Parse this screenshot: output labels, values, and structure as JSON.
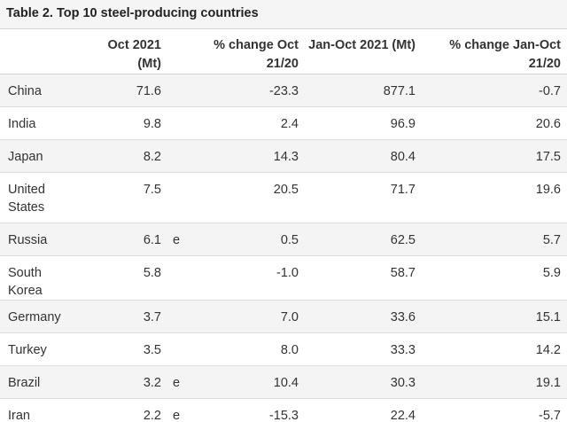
{
  "title": "Table 2. Top 10 steel-producing countries",
  "headers": {
    "country": "",
    "oct_2021": "Oct 2021 (Mt)",
    "flag": "",
    "pct_change_oct": "% change Oct 21/20",
    "jan_oct_2021": "Jan-Oct 2021 (Mt)",
    "pct_change_jan_oct": "% change Jan-Oct 21/20"
  },
  "rows": [
    {
      "country": "China",
      "oct": "71.6",
      "flag": "",
      "pct_oct": "-23.3",
      "jan_oct": "877.1",
      "pct_jan_oct": "-0.7"
    },
    {
      "country": "India",
      "oct": "9.8",
      "flag": "",
      "pct_oct": "2.4",
      "jan_oct": "96.9",
      "pct_jan_oct": "20.6"
    },
    {
      "country": "Japan",
      "oct": "8.2",
      "flag": "",
      "pct_oct": "14.3",
      "jan_oct": "80.4",
      "pct_jan_oct": "17.5"
    },
    {
      "country": "United States",
      "oct": "7.5",
      "flag": "",
      "pct_oct": "20.5",
      "jan_oct": "71.7",
      "pct_jan_oct": "19.6"
    },
    {
      "country": "Russia",
      "oct": "6.1",
      "flag": "e",
      "pct_oct": "0.5",
      "jan_oct": "62.5",
      "pct_jan_oct": "5.7"
    },
    {
      "country": "South Korea",
      "oct": "5.8",
      "flag": "",
      "pct_oct": "-1.0",
      "jan_oct": "58.7",
      "pct_jan_oct": "5.9"
    },
    {
      "country": "Germany",
      "oct": "3.7",
      "flag": "",
      "pct_oct": "7.0",
      "jan_oct": "33.6",
      "pct_jan_oct": "15.1"
    },
    {
      "country": "Turkey",
      "oct": "3.5",
      "flag": "",
      "pct_oct": "8.0",
      "jan_oct": "33.3",
      "pct_jan_oct": "14.2"
    },
    {
      "country": "Brazil",
      "oct": "3.2",
      "flag": "e",
      "pct_oct": "10.4",
      "jan_oct": "30.3",
      "pct_jan_oct": "19.1"
    },
    {
      "country": "Iran",
      "oct": "2.2",
      "flag": "e",
      "pct_oct": "-15.3",
      "jan_oct": "22.4",
      "pct_jan_oct": "-5.7"
    }
  ]
}
